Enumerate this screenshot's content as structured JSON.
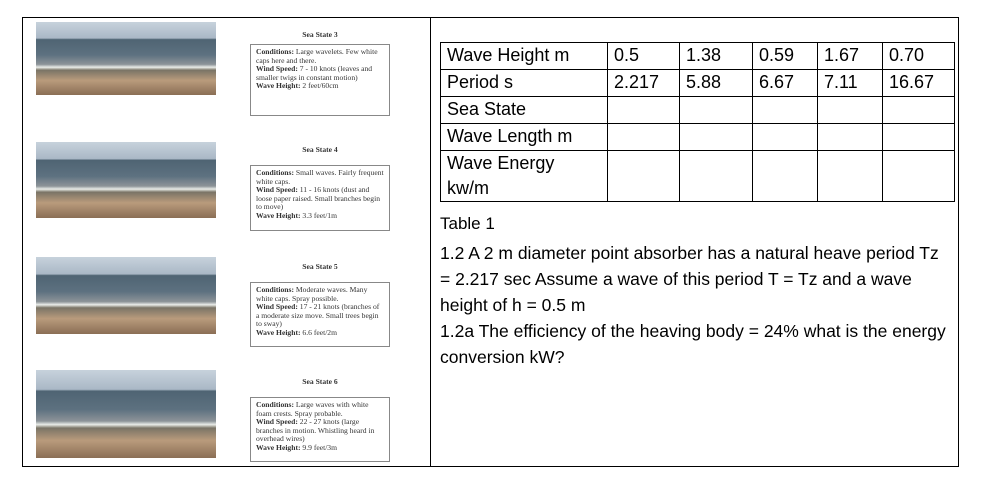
{
  "left": {
    "sea_states": [
      {
        "title": "Sea State 3",
        "conditions_label": "Conditions:",
        "conditions": "Large wavelets. Few white caps here and there.",
        "wind_label": "Wind Speed:",
        "wind": "7 - 10 knots (leaves and smaller twigs in constant motion)",
        "height_label": "Wave Height:",
        "height": "2 feet/60cm"
      },
      {
        "title": "Sea State 4",
        "conditions_label": "Conditions:",
        "conditions": "Small waves. Fairly frequent white caps.",
        "wind_label": "Wind Speed:",
        "wind": "11 - 16 knots (dust and loose paper raised. Small branches begin to move)",
        "height_label": "Wave Height:",
        "height": "3.3 feet/1m"
      },
      {
        "title": "Sea State 5",
        "conditions_label": "Conditions:",
        "conditions": "Moderate waves. Many white caps. Spray possible.",
        "wind_label": "Wind Speed:",
        "wind": "17 - 21 knots (branches of a moderate size move. Small trees begin to sway)",
        "height_label": "Wave Height:",
        "height": "6.6 feet/2m"
      },
      {
        "title": "Sea State 6",
        "conditions_label": "Conditions:",
        "conditions": "Large waves with white foam crests. Spray probable.",
        "wind_label": "Wind Speed:",
        "wind": "22 - 27 knots (large branches in motion. Whistling heard in overhead wires)",
        "height_label": "Wave Height:",
        "height": "9.9 feet/3m"
      }
    ]
  },
  "right": {
    "table": {
      "rows": [
        [
          "Wave Height m",
          "0.5",
          "1.38",
          "0.59",
          "1.67",
          "0.70"
        ],
        [
          "Period s",
          "2.217",
          "5.88",
          "6.67",
          "7.11",
          "16.67"
        ],
        [
          "Sea State"
        ],
        [
          "Wave Length m"
        ],
        [
          "Wave Energy kw/m"
        ]
      ]
    },
    "caption": "Table 1",
    "paragraphs": [
      "1.2  A  2 m diameter point absorber has a  natural heave period Tz = 2.217 sec   Assume a wave of this period T = Tz and a wave height of h = 0.5  m",
      "1.2a  The efficiency of the heaving body = 24% what is the energy conversion kW?"
    ]
  }
}
